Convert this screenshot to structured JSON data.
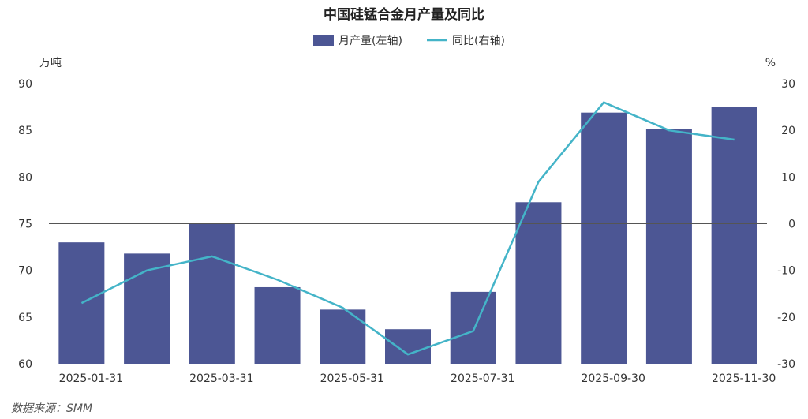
{
  "chart_data": {
    "type": "bar",
    "title": "中国硅锰合金月产量及同比",
    "categories": [
      "2025-01-31",
      "2025-02-28",
      "2025-03-31",
      "2025-04-30",
      "2025-05-31",
      "2025-06-30",
      "2025-07-31",
      "2025-08-31",
      "2025-09-30",
      "2025-10-31",
      "2025-11-30"
    ],
    "x_tick_labels": [
      "2025-01-31",
      "",
      "2025-03-31",
      "",
      "2025-05-31",
      "",
      "2025-07-31",
      "",
      "2025-09-30",
      "",
      "2025-11-30"
    ],
    "series": [
      {
        "name": "月产量(左轴)",
        "type": "bar",
        "axis": "left",
        "values": [
          73.0,
          71.8,
          75.0,
          68.2,
          65.8,
          63.7,
          67.7,
          77.3,
          86.9,
          85.1,
          87.5
        ]
      },
      {
        "name": "同比(右轴)",
        "type": "line",
        "axis": "right",
        "values": [
          -17,
          -10,
          -7,
          -12,
          -18,
          -28,
          -23,
          9,
          26,
          20,
          18
        ]
      }
    ],
    "left_axis": {
      "unit": "万吨",
      "min": 60,
      "max": 90,
      "ticks": [
        60,
        65,
        70,
        75,
        80,
        85,
        90
      ]
    },
    "right_axis": {
      "unit": "%",
      "min": -30,
      "max": 30,
      "ticks": [
        -30,
        -20,
        -10,
        0,
        10,
        20,
        30
      ]
    },
    "legend_position": "top-center",
    "grid": false
  },
  "source": "数据来源：SMM",
  "colors": {
    "bar": "#4c5694",
    "line": "#44b4c8",
    "zero_line": "#555555",
    "text": "#333333"
  }
}
